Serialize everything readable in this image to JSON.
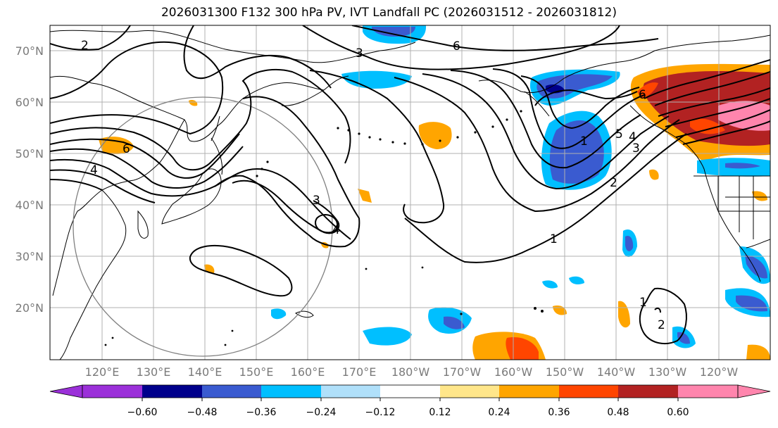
{
  "title": "2026031300 F132 300 hPa PV, IVT Landfall PC (2026031512 - 2026031812)",
  "latitude_labels": [
    "70°N",
    "60°N",
    "50°N",
    "40°N",
    "30°N",
    "20°N"
  ],
  "longitude_labels": [
    "120°E",
    "130°E",
    "140°E",
    "150°E",
    "160°E",
    "170°E",
    "180°W",
    "170°W",
    "160°W",
    "150°W",
    "140°W",
    "130°W",
    "120°W"
  ],
  "colorbar": {
    "tick_labels": [
      "−0.60",
      "−0.48",
      "−0.36",
      "−0.24",
      "−0.12",
      "0.12",
      "0.24",
      "0.36",
      "0.48",
      "0.60"
    ],
    "colors": [
      "#9b30d9",
      "#00008b",
      "#3a5bd0",
      "#00bfff",
      "#b0e0fa",
      "#ffffff",
      "#ffe68a",
      "#ffa500",
      "#ff4500",
      "#b22222",
      "#ff85ad"
    ]
  },
  "contour_labels": [
    "2",
    "6",
    "3",
    "6",
    "4",
    "3",
    "4",
    "1",
    "5",
    "4",
    "3",
    "6",
    "2",
    "1",
    "1",
    "2"
  ],
  "colors": {
    "land_outline": "#000000",
    "grid": "#b0b0b0",
    "contour": "#000000",
    "circle": "#808080"
  }
}
